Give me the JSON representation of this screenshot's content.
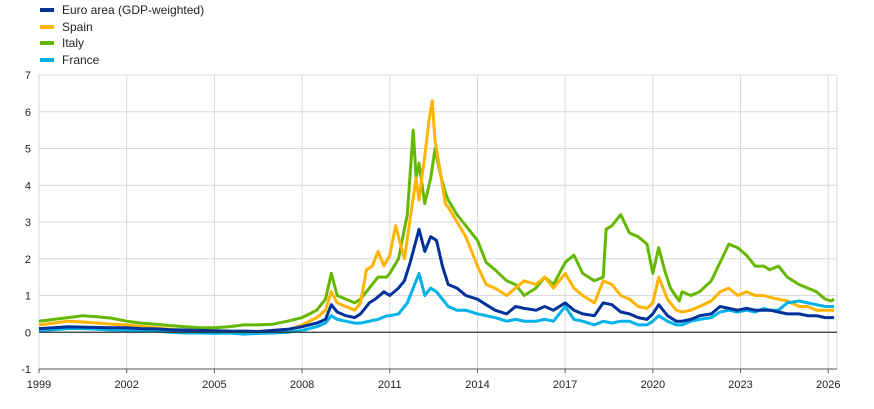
{
  "chart_data": {
    "type": "line",
    "title": "",
    "xlabel": "",
    "ylabel": "",
    "xlim": [
      1999.0,
      2026.3
    ],
    "ylim": [
      -1,
      7
    ],
    "y_ticks": [
      -1,
      0,
      1,
      2,
      3,
      4,
      5,
      6,
      7
    ],
    "x_ticks": [
      1999,
      2002,
      2005,
      2008,
      2011,
      2014,
      2017,
      2020,
      2023,
      2026
    ],
    "grid": true,
    "legend_position": "top-left",
    "series": [
      {
        "name": "Euro area (GDP-weighted)",
        "color": "#003299",
        "x": [
          1999.0,
          1999.5,
          2000.0,
          2000.5,
          2001.0,
          2001.5,
          2002.0,
          2002.5,
          2003.0,
          2003.5,
          2004.0,
          2004.5,
          2005.0,
          2005.5,
          2006.0,
          2006.5,
          2007.0,
          2007.5,
          2008.0,
          2008.5,
          2008.8,
          2009.0,
          2009.2,
          2009.5,
          2009.8,
          2010.0,
          2010.3,
          2010.5,
          2010.8,
          2011.0,
          2011.3,
          2011.5,
          2011.7,
          2011.9,
          2012.0,
          2012.2,
          2012.4,
          2012.6,
          2012.8,
          2013.0,
          2013.3,
          2013.6,
          2014.0,
          2014.3,
          2014.6,
          2015.0,
          2015.3,
          2015.6,
          2016.0,
          2016.3,
          2016.6,
          2017.0,
          2017.3,
          2017.6,
          2018.0,
          2018.3,
          2018.6,
          2018.9,
          2019.2,
          2019.5,
          2019.8,
          2020.0,
          2020.2,
          2020.5,
          2020.8,
          2021.0,
          2021.3,
          2021.6,
          2022.0,
          2022.3,
          2022.6,
          2022.9,
          2023.2,
          2023.5,
          2023.8,
          2024.0,
          2024.3,
          2024.6,
          2025.0,
          2025.3,
          2025.6,
          2025.9,
          2026.2
        ],
        "y": [
          0.1,
          0.12,
          0.15,
          0.14,
          0.13,
          0.12,
          0.12,
          0.1,
          0.09,
          0.07,
          0.06,
          0.05,
          0.04,
          0.03,
          0.03,
          0.02,
          0.05,
          0.08,
          0.15,
          0.25,
          0.35,
          0.75,
          0.55,
          0.45,
          0.4,
          0.5,
          0.8,
          0.9,
          1.1,
          1.0,
          1.2,
          1.4,
          1.9,
          2.5,
          2.8,
          2.2,
          2.6,
          2.5,
          1.8,
          1.3,
          1.2,
          1.0,
          0.9,
          0.75,
          0.6,
          0.5,
          0.7,
          0.65,
          0.6,
          0.7,
          0.6,
          0.8,
          0.6,
          0.5,
          0.45,
          0.8,
          0.75,
          0.55,
          0.5,
          0.4,
          0.35,
          0.5,
          0.75,
          0.45,
          0.3,
          0.3,
          0.35,
          0.45,
          0.5,
          0.7,
          0.65,
          0.6,
          0.65,
          0.6,
          0.6,
          0.6,
          0.55,
          0.5,
          0.5,
          0.45,
          0.45,
          0.4,
          0.4
        ]
      },
      {
        "name": "Spain",
        "color": "#FFB400",
        "x": [
          1999.0,
          1999.5,
          2000.0,
          2000.5,
          2001.0,
          2001.5,
          2002.0,
          2002.5,
          2003.0,
          2003.5,
          2004.0,
          2004.5,
          2005.0,
          2005.5,
          2006.0,
          2006.5,
          2007.0,
          2007.5,
          2008.0,
          2008.5,
          2008.8,
          2009.0,
          2009.2,
          2009.5,
          2009.8,
          2010.0,
          2010.2,
          2010.4,
          2010.6,
          2010.8,
          2011.0,
          2011.2,
          2011.5,
          2011.7,
          2011.9,
          2012.0,
          2012.2,
          2012.35,
          2012.45,
          2012.55,
          2012.7,
          2012.9,
          2013.0,
          2013.3,
          2013.6,
          2014.0,
          2014.3,
          2014.6,
          2015.0,
          2015.3,
          2015.6,
          2016.0,
          2016.3,
          2016.6,
          2017.0,
          2017.3,
          2017.6,
          2018.0,
          2018.3,
          2018.6,
          2018.9,
          2019.2,
          2019.5,
          2019.8,
          2020.0,
          2020.2,
          2020.5,
          2020.8,
          2021.0,
          2021.3,
          2021.6,
          2022.0,
          2022.3,
          2022.6,
          2022.9,
          2023.2,
          2023.5,
          2023.8,
          2024.0,
          2024.3,
          2024.6,
          2025.0,
          2025.3,
          2025.6,
          2025.9,
          2026.2
        ],
        "y": [
          0.2,
          0.25,
          0.3,
          0.28,
          0.25,
          0.22,
          0.2,
          0.16,
          0.12,
          0.08,
          0.05,
          0.03,
          0.02,
          0.01,
          -0.05,
          0.0,
          0.0,
          0.05,
          0.2,
          0.4,
          0.6,
          1.1,
          0.8,
          0.7,
          0.6,
          0.8,
          1.7,
          1.8,
          2.2,
          1.8,
          2.1,
          2.9,
          2.0,
          3.1,
          4.2,
          3.6,
          4.8,
          5.8,
          6.3,
          5.2,
          4.5,
          3.5,
          3.4,
          3.0,
          2.6,
          1.8,
          1.3,
          1.2,
          1.0,
          1.2,
          1.4,
          1.3,
          1.5,
          1.2,
          1.6,
          1.2,
          1.0,
          0.8,
          1.4,
          1.3,
          1.0,
          0.9,
          0.7,
          0.65,
          0.8,
          1.5,
          0.9,
          0.6,
          0.55,
          0.6,
          0.7,
          0.85,
          1.1,
          1.2,
          1.0,
          1.1,
          1.0,
          1.0,
          0.95,
          0.9,
          0.85,
          0.7,
          0.7,
          0.6,
          0.6,
          0.6
        ]
      },
      {
        "name": "Italy",
        "color": "#65B800",
        "x": [
          1999.0,
          1999.5,
          2000.0,
          2000.5,
          2001.0,
          2001.5,
          2002.0,
          2002.5,
          2003.0,
          2003.5,
          2004.0,
          2004.5,
          2005.0,
          2005.5,
          2006.0,
          2006.5,
          2007.0,
          2007.5,
          2008.0,
          2008.5,
          2008.8,
          2009.0,
          2009.2,
          2009.5,
          2009.8,
          2010.0,
          2010.3,
          2010.6,
          2010.9,
          2011.0,
          2011.3,
          2011.6,
          2011.8,
          2011.9,
          2012.0,
          2012.2,
          2012.4,
          2012.55,
          2012.7,
          2012.9,
          2013.0,
          2013.3,
          2013.6,
          2014.0,
          2014.3,
          2014.6,
          2015.0,
          2015.3,
          2015.6,
          2016.0,
          2016.3,
          2016.6,
          2017.0,
          2017.3,
          2017.6,
          2018.0,
          2018.3,
          2018.4,
          2018.6,
          2018.9,
          2019.2,
          2019.5,
          2019.8,
          2020.0,
          2020.2,
          2020.4,
          2020.6,
          2020.9,
          2021.0,
          2021.3,
          2021.6,
          2022.0,
          2022.3,
          2022.6,
          2022.9,
          2023.2,
          2023.5,
          2023.8,
          2024.0,
          2024.3,
          2024.6,
          2025.0,
          2025.3,
          2025.6,
          2025.9,
          2026.1,
          2026.2
        ],
        "y": [
          0.3,
          0.35,
          0.4,
          0.45,
          0.42,
          0.38,
          0.3,
          0.25,
          0.22,
          0.18,
          0.15,
          0.12,
          0.12,
          0.15,
          0.2,
          0.2,
          0.22,
          0.3,
          0.4,
          0.6,
          0.9,
          1.6,
          1.0,
          0.9,
          0.8,
          0.9,
          1.2,
          1.5,
          1.5,
          1.6,
          2.0,
          3.2,
          5.5,
          4.2,
          4.6,
          3.5,
          4.2,
          5.0,
          4.4,
          3.8,
          3.6,
          3.2,
          2.9,
          2.5,
          1.9,
          1.7,
          1.4,
          1.3,
          1.0,
          1.2,
          1.5,
          1.3,
          1.9,
          2.1,
          1.6,
          1.4,
          1.5,
          2.8,
          2.9,
          3.2,
          2.7,
          2.6,
          2.4,
          1.6,
          2.3,
          1.7,
          1.2,
          0.85,
          1.1,
          1.0,
          1.1,
          1.4,
          1.9,
          2.4,
          2.3,
          2.1,
          1.8,
          1.8,
          1.7,
          1.8,
          1.5,
          1.3,
          1.2,
          1.1,
          0.9,
          0.85,
          0.9
        ]
      },
      {
        "name": "France",
        "color": "#00B1EA",
        "x": [
          1999.0,
          1999.5,
          2000.0,
          2000.5,
          2001.0,
          2001.5,
          2002.0,
          2002.5,
          2003.0,
          2003.5,
          2004.0,
          2004.5,
          2005.0,
          2005.5,
          2006.0,
          2006.5,
          2007.0,
          2007.5,
          2008.0,
          2008.5,
          2008.8,
          2009.0,
          2009.2,
          2009.5,
          2009.8,
          2010.0,
          2010.3,
          2010.6,
          2010.9,
          2011.0,
          2011.3,
          2011.6,
          2011.8,
          2011.9,
          2012.0,
          2012.2,
          2012.4,
          2012.6,
          2012.8,
          2013.0,
          2013.3,
          2013.6,
          2014.0,
          2014.3,
          2014.6,
          2015.0,
          2015.3,
          2015.6,
          2016.0,
          2016.3,
          2016.6,
          2017.0,
          2017.3,
          2017.6,
          2018.0,
          2018.3,
          2018.6,
          2018.9,
          2019.2,
          2019.5,
          2019.8,
          2020.0,
          2020.2,
          2020.5,
          2020.8,
          2021.0,
          2021.3,
          2021.6,
          2022.0,
          2022.3,
          2022.6,
          2022.9,
          2023.2,
          2023.5,
          2023.8,
          2024.0,
          2024.3,
          2024.6,
          2025.0,
          2025.3,
          2025.6,
          2025.9,
          2026.2
        ],
        "y": [
          0.05,
          0.07,
          0.1,
          0.1,
          0.08,
          0.06,
          0.05,
          0.04,
          0.03,
          0.0,
          -0.02,
          -0.02,
          -0.03,
          -0.02,
          -0.05,
          -0.03,
          -0.02,
          0.0,
          0.05,
          0.15,
          0.25,
          0.45,
          0.35,
          0.3,
          0.25,
          0.25,
          0.3,
          0.35,
          0.45,
          0.45,
          0.5,
          0.8,
          1.2,
          1.4,
          1.6,
          1.0,
          1.2,
          1.1,
          0.9,
          0.7,
          0.6,
          0.6,
          0.5,
          0.45,
          0.4,
          0.3,
          0.35,
          0.3,
          0.3,
          0.35,
          0.3,
          0.7,
          0.35,
          0.3,
          0.2,
          0.3,
          0.25,
          0.3,
          0.3,
          0.2,
          0.2,
          0.3,
          0.45,
          0.3,
          0.2,
          0.2,
          0.3,
          0.35,
          0.4,
          0.55,
          0.6,
          0.55,
          0.6,
          0.55,
          0.65,
          0.6,
          0.6,
          0.8,
          0.85,
          0.8,
          0.75,
          0.7,
          0.7
        ]
      }
    ]
  }
}
